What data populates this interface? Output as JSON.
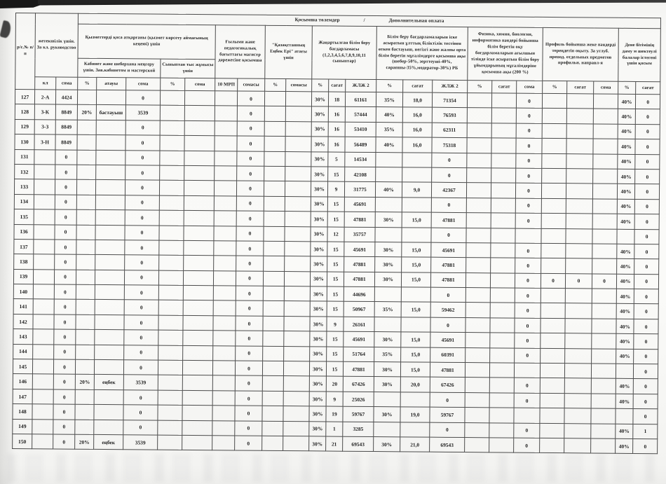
{
  "table": {
    "title_kk": "Қосымша төлемдер",
    "title_sep": "/",
    "title_ru": "Дополнительная оплата",
    "corner": "р/с.№ п/п",
    "groups": {
      "klass": "жетекшілік үшін. За кл. руководство",
      "combined": "Қызметтерді қоса атқарғаны (қызмет көрсету аймағының кеңеюі) үшін",
      "cabinet": "Кабинет және шеберхана меңгеру үшін. Зав.кабинетом и мастерской",
      "extracurricular": "Сыныптан тыс жұмысы үшін",
      "master": "Ғылыми және педагогикалық бағыттағы магистр дәрежесіне қосымша",
      "hero": "\"Қазақстанның Еңбек Ері\" атағы үшін",
      "updated_program": "Жаңартылған білім беру бағдарламасы (1,2,3,4,5,6,7,8,9,10,11 сыныптар)",
      "national_test": "Білім беру бағдарламаларын іске асыратын ұлттық біліктілік тестінен өткен бастауыш, негізгі және жалпы орта білім беретін мұғалімдерге қосымша ақы (шебер-50%, зерттеуші-40%, сарапшы-35%,модератор-30%) РБ",
      "english_subjects": "Физика, химия, биология, информатика пәндері бойынша білім беретін оқу бағдарламаларын ағылшын тілінде іске асыратын білім беру ұйымдарының мұғалімдеріне қосымша ақы (200 %)",
      "profile": "Профиль бойынша жеке пәндерді тереңдетіп оқыту. За углуб. препод. отдельных предметов профильн. направл-я",
      "disability": "Дене бітімінің даму м шектеулі балалар істегені үшін қосым"
    },
    "sub_headers": [
      "кл",
      "сома",
      "%",
      "атауы",
      "сома",
      "%",
      "сома",
      "10 МРП",
      "сомасы",
      "%",
      "сомасы",
      "%",
      "сағат",
      "ЖЛЖ 2",
      "%",
      "сағат",
      "ЖЛЖ 2",
      "%",
      "сағат",
      "сома",
      "%",
      "сағат",
      "сома",
      "%",
      "сағат"
    ],
    "rows": [
      [
        "127",
        "2-А",
        "4424",
        "",
        "",
        "0",
        "",
        "",
        "",
        "0",
        "",
        "",
        "30%",
        "18",
        "61161",
        "35%",
        "18,0",
        "71354",
        "",
        "",
        "0",
        "",
        "",
        "",
        "40%",
        "0"
      ],
      [
        "128",
        "3-К",
        "8849",
        "20%",
        "бастауыш",
        "3539",
        "",
        "",
        "",
        "0",
        "",
        "",
        "30%",
        "16",
        "57444",
        "40%",
        "16,0",
        "76593",
        "",
        "",
        "0",
        "",
        "",
        "",
        "40%",
        "0"
      ],
      [
        "129",
        "3-З",
        "8849",
        "",
        "",
        "0",
        "",
        "",
        "",
        "0",
        "",
        "",
        "30%",
        "16",
        "53410",
        "35%",
        "16,0",
        "62311",
        "",
        "",
        "0",
        "",
        "",
        "",
        "40%",
        "0"
      ],
      [
        "130",
        "3-Н",
        "8849",
        "",
        "",
        "0",
        "",
        "",
        "",
        "0",
        "",
        "",
        "30%",
        "16",
        "56489",
        "40%",
        "16,0",
        "75318",
        "",
        "",
        "0",
        "",
        "",
        "",
        "40%",
        "0"
      ],
      [
        "131",
        "",
        "0",
        "",
        "",
        "0",
        "",
        "",
        "",
        "0",
        "",
        "",
        "30%",
        "5",
        "14534",
        "",
        "",
        "0",
        "",
        "",
        "0",
        "",
        "",
        "",
        "40%",
        "0"
      ],
      [
        "132",
        "",
        "0",
        "",
        "",
        "0",
        "",
        "",
        "",
        "0",
        "",
        "",
        "30%",
        "15",
        "42108",
        "",
        "",
        "0",
        "",
        "",
        "0",
        "",
        "",
        "",
        "40%",
        "0"
      ],
      [
        "133",
        "",
        "0",
        "",
        "",
        "0",
        "",
        "",
        "",
        "0",
        "",
        "",
        "30%",
        "9",
        "31775",
        "40%",
        "9,0",
        "42367",
        "",
        "",
        "0",
        "",
        "",
        "",
        "40%",
        "0"
      ],
      [
        "134",
        "",
        "0",
        "",
        "",
        "0",
        "",
        "",
        "",
        "0",
        "",
        "",
        "30%",
        "15",
        "45691",
        "",
        "",
        "0",
        "",
        "",
        "0",
        "",
        "",
        "",
        "40%",
        "0"
      ],
      [
        "135",
        "",
        "0",
        "",
        "",
        "0",
        "",
        "",
        "",
        "0",
        "",
        "",
        "30%",
        "15",
        "47881",
        "30%",
        "15,0",
        "47881",
        "",
        "",
        "0",
        "",
        "",
        "",
        "40%",
        "0"
      ],
      [
        "136",
        "",
        "0",
        "",
        "",
        "0",
        "",
        "",
        "",
        "0",
        "",
        "",
        "30%",
        "12",
        "35757",
        "",
        "",
        "0",
        "",
        "",
        "",
        "",
        "",
        "",
        "",
        "0"
      ],
      [
        "137",
        "",
        "0",
        "",
        "",
        "0",
        "",
        "",
        "",
        "0",
        "",
        "",
        "30%",
        "15",
        "45691",
        "30%",
        "15,0",
        "45691",
        "",
        "",
        "0",
        "",
        "",
        "",
        "40%",
        "0"
      ],
      [
        "138",
        "",
        "0",
        "",
        "",
        "0",
        "",
        "",
        "",
        "0",
        "",
        "",
        "30%",
        "15",
        "47881",
        "30%",
        "15,0",
        "47881",
        "",
        "",
        "0",
        "",
        "",
        "",
        "40%",
        "0"
      ],
      [
        "139",
        "",
        "0",
        "",
        "",
        "0",
        "",
        "",
        "",
        "0",
        "",
        "",
        "30%",
        "15",
        "47881",
        "30%",
        "15,0",
        "47881",
        "",
        "",
        "0",
        "0",
        "0",
        "0",
        "40%",
        "0"
      ],
      [
        "140",
        "",
        "0",
        "",
        "",
        "0",
        "",
        "",
        "",
        "0",
        "",
        "",
        "30%",
        "15",
        "44696",
        "",
        "",
        "0",
        "",
        "",
        "0",
        "",
        "",
        "",
        "40%",
        "0"
      ],
      [
        "141",
        "",
        "0",
        "",
        "",
        "0",
        "",
        "",
        "",
        "0",
        "",
        "",
        "30%",
        "15",
        "50967",
        "35%",
        "15,0",
        "59462",
        "",
        "",
        "0",
        "",
        "",
        "",
        "40%",
        "0"
      ],
      [
        "142",
        "",
        "0",
        "",
        "",
        "0",
        "",
        "",
        "",
        "0",
        "",
        "",
        "30%",
        "9",
        "26161",
        "",
        "",
        "0",
        "",
        "",
        "0",
        "",
        "",
        "",
        "40%",
        "0"
      ],
      [
        "143",
        "",
        "0",
        "",
        "",
        "0",
        "",
        "",
        "",
        "0",
        "",
        "",
        "30%",
        "15",
        "45691",
        "30%",
        "15,0",
        "45691",
        "",
        "",
        "0",
        "",
        "",
        "",
        "40%",
        "0"
      ],
      [
        "144",
        "",
        "0",
        "",
        "",
        "0",
        "",
        "",
        "",
        "0",
        "",
        "",
        "30%",
        "15",
        "51764",
        "35%",
        "15,0",
        "60391",
        "",
        "",
        "0",
        "",
        "",
        "",
        "40%",
        "0"
      ],
      [
        "145",
        "",
        "0",
        "",
        "",
        "0",
        "",
        "",
        "",
        "0",
        "",
        "",
        "30%",
        "15",
        "47881",
        "30%",
        "15,0",
        "47881",
        "",
        "",
        "",
        "",
        "",
        "",
        "",
        "0"
      ],
      [
        "146",
        "",
        "0",
        "20%",
        "еңбек",
        "3539",
        "",
        "",
        "",
        "0",
        "",
        "",
        "30%",
        "20",
        "67426",
        "30%",
        "20,0",
        "67426",
        "",
        "",
        "0",
        "",
        "",
        "",
        "40%",
        "0"
      ],
      [
        "147",
        "",
        "0",
        "",
        "",
        "0",
        "",
        "",
        "",
        "0",
        "",
        "",
        "30%",
        "9",
        "25026",
        "",
        "",
        "0",
        "",
        "",
        "0",
        "",
        "",
        "",
        "40%",
        "0"
      ],
      [
        "148",
        "",
        "0",
        "",
        "",
        "0",
        "",
        "",
        "",
        "0",
        "",
        "",
        "30%",
        "19",
        "59767",
        "30%",
        "19,0",
        "59767",
        "",
        "",
        "",
        "",
        "",
        "",
        "",
        "0"
      ],
      [
        "149",
        "",
        "0",
        "",
        "",
        "0",
        "",
        "",
        "",
        "0",
        "",
        "",
        "30%",
        "1",
        "3285",
        "",
        "",
        "0",
        "",
        "",
        "0",
        "",
        "",
        "",
        "40%",
        "1"
      ],
      [
        "150",
        "",
        "0",
        "20%",
        "еңбек",
        "3539",
        "",
        "",
        "",
        "0",
        "",
        "",
        "30%",
        "21",
        "69543",
        "30%",
        "21,0",
        "69543",
        "",
        "",
        "0",
        "",
        "",
        "",
        "40%",
        "0"
      ]
    ]
  }
}
